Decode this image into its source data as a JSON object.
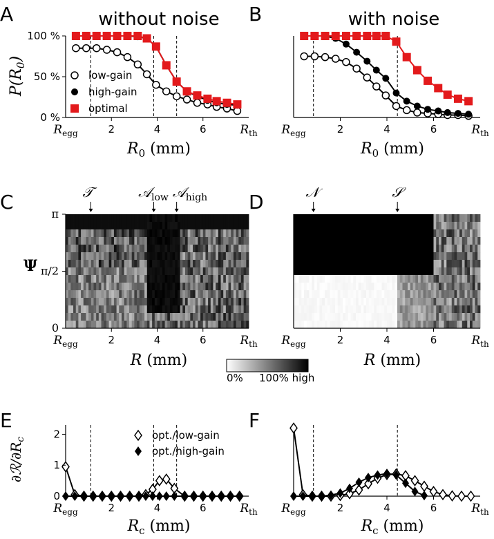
{
  "chart_data": [
    {
      "panel": "A",
      "type": "line",
      "title": "without noise",
      "xlabel": "R0 (mm)",
      "ylabel": "P(R0)",
      "x_start_label": "Regg",
      "x_end_label": "Rth",
      "xlim": [
        0,
        8
      ],
      "ylim": [
        0,
        100
      ],
      "x_ticks": [
        "2",
        "4",
        "6"
      ],
      "y_ticks": [
        "0 %",
        "50 %",
        "100 %"
      ],
      "legend": [
        "low-gain",
        "high-gain",
        "optimal"
      ],
      "legend_position": "bottom-left",
      "vlines": [
        1.1,
        3.85,
        4.85
      ],
      "x": [
        0.45,
        0.9,
        1.35,
        1.8,
        2.25,
        2.7,
        3.15,
        3.55,
        3.95,
        4.4,
        4.85,
        5.3,
        5.75,
        6.2,
        6.6,
        7.05,
        7.5
      ],
      "series": [
        {
          "name": "low-gain",
          "marker": "open-circle",
          "values": [
            85,
            85,
            85,
            83,
            80,
            74,
            65,
            53,
            40,
            32,
            26,
            22,
            18,
            16,
            13,
            11,
            8
          ]
        },
        {
          "name": "high-gain",
          "marker": "filled-circle",
          "values": [
            100,
            100,
            100,
            100,
            100,
            100,
            99,
            97,
            87,
            64,
            44,
            32,
            26,
            21,
            18,
            16,
            15
          ]
        },
        {
          "name": "optimal",
          "marker": "red-square",
          "values": [
            100,
            100,
            100,
            100,
            100,
            100,
            100,
            97,
            87,
            64,
            44,
            32,
            27,
            23,
            20,
            18,
            16
          ]
        }
      ]
    },
    {
      "panel": "B",
      "type": "line",
      "title": "with noise",
      "xlabel": "R0 (mm)",
      "x_start_label": "Regg",
      "x_end_label": "Rth",
      "xlim": [
        0,
        8
      ],
      "ylim": [
        0,
        100
      ],
      "x_ticks": [
        "2",
        "4",
        "6"
      ],
      "vlines": [
        0.85,
        4.45
      ],
      "x": [
        0.45,
        0.9,
        1.35,
        1.8,
        2.25,
        2.7,
        3.15,
        3.55,
        3.95,
        4.4,
        4.85,
        5.3,
        5.75,
        6.2,
        6.6,
        7.05,
        7.5
      ],
      "series": [
        {
          "name": "low-gain",
          "marker": "open-circle",
          "values": [
            75,
            75,
            74,
            72,
            68,
            60,
            49,
            38,
            27,
            14,
            9,
            6,
            5,
            4,
            3,
            3,
            2
          ]
        },
        {
          "name": "high-gain",
          "marker": "filled-circle",
          "values": [
            100,
            100,
            100,
            97,
            90,
            80,
            69,
            58,
            48,
            30,
            20,
            14,
            10,
            8,
            6,
            5,
            4
          ]
        },
        {
          "name": "optimal",
          "marker": "red-square",
          "values": [
            100,
            100,
            100,
            100,
            100,
            100,
            100,
            100,
            100,
            93,
            74,
            58,
            45,
            36,
            28,
            23,
            20
          ]
        }
      ]
    },
    {
      "panel": "C",
      "type": "heatmap",
      "xlabel": "R (mm)",
      "ylabel": "Ψ",
      "x_start_label": "Regg",
      "x_end_label": "Rth",
      "x_ticks": [
        "2",
        "4",
        "6"
      ],
      "y_ticks": [
        "0",
        "π/2",
        "π"
      ],
      "xlim": [
        0,
        8
      ],
      "annotations": [
        {
          "label": "T",
          "x": 1.1
        },
        {
          "label": "A_low",
          "x": 3.85
        },
        {
          "label": "A_high",
          "x": 4.85
        }
      ]
    },
    {
      "panel": "D",
      "type": "heatmap",
      "xlabel": "R (mm)",
      "x_start_label": "Regg",
      "x_end_label": "Rth",
      "x_ticks": [
        "2",
        "4",
        "6"
      ],
      "xlim": [
        0,
        8
      ],
      "annotations": [
        {
          "label": "N",
          "x": 0.85
        },
        {
          "label": "S",
          "x": 4.45
        }
      ]
    },
    {
      "panel": "colorbar",
      "type": "heatmap",
      "labels": [
        "0%",
        "100% high"
      ]
    },
    {
      "panel": "E",
      "type": "line",
      "xlabel": "Rc (mm)",
      "ylabel": "∂R/∂Rc",
      "x_start_label": "Regg",
      "x_end_label": "Rth",
      "x_ticks": [
        "2",
        "4",
        "6"
      ],
      "y_ticks": [
        "0",
        "1",
        "2"
      ],
      "xlim": [
        0,
        8
      ],
      "ylim": [
        0,
        2.3
      ],
      "legend": [
        "opt./low-gain",
        "opt./high-gain"
      ],
      "legend_position": "top-right",
      "vlines": [
        1.1,
        3.85,
        4.85
      ],
      "x": [
        0.0,
        0.4,
        0.8,
        1.2,
        1.6,
        2.0,
        2.4,
        2.8,
        3.2,
        3.5,
        3.8,
        4.1,
        4.4,
        4.75,
        5.2,
        5.6,
        6.0,
        6.4,
        6.8,
        7.2,
        7.6
      ],
      "series": [
        {
          "name": "opt./low-gain",
          "marker": "open-diamond",
          "values": [
            0.95,
            0.05,
            0,
            0,
            0,
            0,
            0,
            0,
            0,
            0.05,
            0.22,
            0.5,
            0.55,
            0.25,
            0,
            0,
            0,
            0,
            0,
            0,
            0
          ]
        },
        {
          "name": "opt./high-gain",
          "marker": "filled-diamond",
          "values": [
            0,
            0,
            0,
            0,
            0,
            0,
            0,
            0,
            0,
            0,
            0,
            0,
            0,
            0,
            0,
            0,
            0,
            0,
            0,
            0,
            0
          ]
        }
      ]
    },
    {
      "panel": "F",
      "type": "line",
      "xlabel": "Rc (mm)",
      "x_start_label": "Regg",
      "x_end_label": "Rth",
      "x_ticks": [
        "2",
        "4",
        "6"
      ],
      "y_ticks": [
        "0",
        "1",
        "2"
      ],
      "xlim": [
        0,
        8
      ],
      "ylim": [
        0,
        2.3
      ],
      "vlines": [
        0.85,
        4.45
      ],
      "series": [
        {
          "name": "opt./low-gain",
          "marker": "open-diamond",
          "x": [
            0.0,
            0.4,
            0.8,
            1.2,
            1.6,
            2.0,
            2.4,
            2.8,
            3.2,
            3.6,
            4.0,
            4.4,
            4.8,
            5.2,
            5.6,
            6.0,
            6.4,
            6.8,
            7.2,
            7.6
          ],
          "values": [
            2.2,
            0.05,
            0,
            0,
            0,
            0.02,
            0.08,
            0.2,
            0.4,
            0.58,
            0.7,
            0.72,
            0.66,
            0.5,
            0.32,
            0.15,
            0.05,
            0.01,
            0,
            0
          ]
        },
        {
          "name": "opt./high-gain",
          "marker": "filled-diamond",
          "x": [
            0.0,
            0.4,
            0.8,
            1.2,
            1.6,
            2.0,
            2.4,
            2.8,
            3.2,
            3.6,
            4.0,
            4.4,
            4.8,
            5.2,
            5.6
          ],
          "values": [
            0,
            0,
            0,
            0,
            0.03,
            0.1,
            0.25,
            0.45,
            0.6,
            0.68,
            0.73,
            0.68,
            0.42,
            0.15,
            0.02
          ]
        }
      ]
    }
  ]
}
